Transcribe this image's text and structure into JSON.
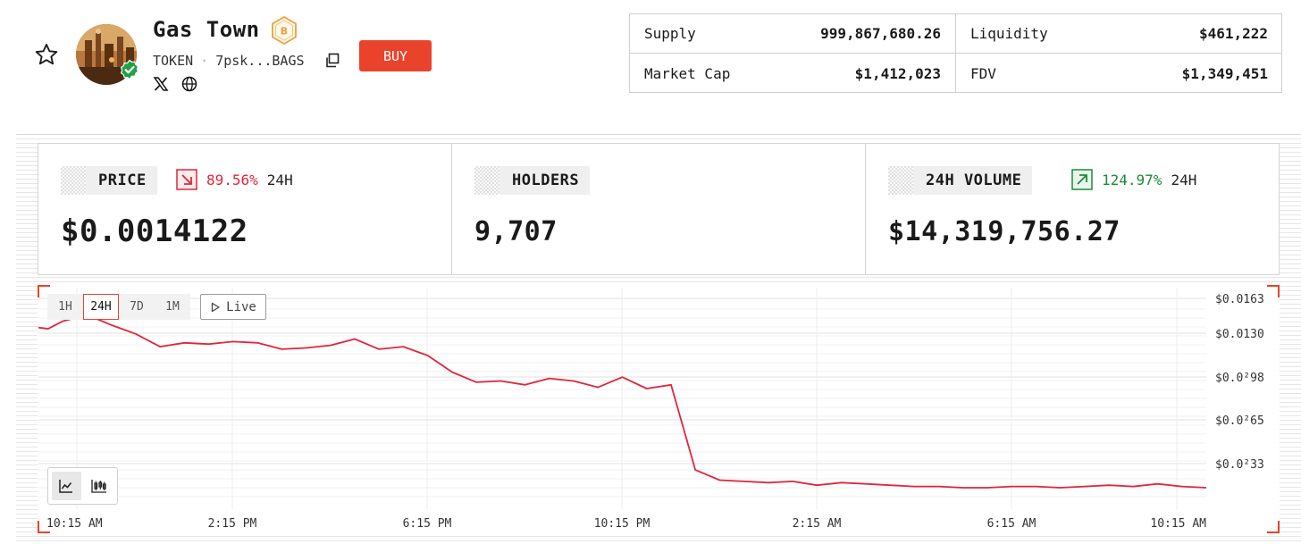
{
  "token": {
    "name": "Gas Town",
    "badge_letter": "B",
    "type": "TOKEN",
    "address": "7psk...BAGS",
    "buy_label": "BUY"
  },
  "stats": [
    {
      "label": "Supply",
      "value": "999,867,680.26"
    },
    {
      "label": "Liquidity",
      "value": "$461,222"
    },
    {
      "label": "Market Cap",
      "value": "$1,412,023"
    },
    {
      "label": "FDV",
      "value": "$1,349,451"
    }
  ],
  "metrics": {
    "price": {
      "label": "PRICE",
      "change": "89.56%",
      "period": "24H",
      "value": "$0.0014122",
      "direction": "down",
      "color": "#e0263c"
    },
    "holders": {
      "label": "HOLDERS",
      "value": "9,707"
    },
    "volume": {
      "label": "24H VOLUME",
      "change": "124.97%",
      "period": "24H",
      "value": "$14,319,756.27",
      "direction": "up",
      "color": "#1f8a3a"
    }
  },
  "timeframes": [
    "1H",
    "24H",
    "7D",
    "1M"
  ],
  "active_timeframe": "24H",
  "live_label": "Live",
  "accent_color": "#e9432b",
  "icons": [
    "star-icon",
    "verified-icon",
    "copy-icon",
    "x-icon",
    "globe-icon",
    "play-icon",
    "line-chart-icon",
    "candlestick-icon",
    "arrow-down-right-icon",
    "arrow-up-right-icon"
  ],
  "chart_data": {
    "type": "line",
    "title": "",
    "xlabel": "",
    "ylabel": "",
    "x_ticks": [
      "10:15 AM",
      "2:15 PM",
      "6:15 PM",
      "10:15 PM",
      "2:15 AM",
      "6:15 AM",
      "10:15 AM"
    ],
    "y_ticks": [
      "$0.0163",
      "$0.0130",
      "$0.0²98",
      "$0.0²65",
      "$0.0²33"
    ],
    "ylim": [
      0.0014,
      0.0163
    ],
    "line_color": "#e0263c",
    "grid": true,
    "series": [
      {
        "x_hours": [
          0,
          0.2,
          0.5,
          1,
          1.5,
          2,
          2.5,
          3,
          3.5,
          4,
          4.5,
          5,
          5.5,
          6,
          6.5,
          7,
          7.5,
          8,
          8.5,
          9,
          9.5,
          10,
          10.5,
          11,
          11.5,
          12,
          12.5,
          13,
          13.5,
          14,
          14.5,
          15,
          15.5,
          16,
          16.5,
          17,
          17.5,
          18,
          18.5,
          19,
          19.5,
          20,
          20.5,
          21,
          21.5,
          22,
          22.5,
          23,
          23.5,
          24
        ],
        "values": [
          0.014,
          0.0139,
          0.0145,
          0.015,
          0.0142,
          0.0135,
          0.0125,
          0.0128,
          0.0127,
          0.0129,
          0.0128,
          0.0123,
          0.0124,
          0.0126,
          0.0131,
          0.0123,
          0.0125,
          0.0118,
          0.0105,
          0.0097,
          0.0098,
          0.0095,
          0.01,
          0.0098,
          0.0093,
          0.0101,
          0.0092,
          0.0095,
          0.0028,
          0.002,
          0.0019,
          0.0018,
          0.0019,
          0.0016,
          0.0018,
          0.0017,
          0.0016,
          0.0015,
          0.0015,
          0.0014,
          0.0014,
          0.0015,
          0.0015,
          0.0014,
          0.0015,
          0.0016,
          0.0015,
          0.0017,
          0.0015,
          0.0014
        ]
      }
    ]
  }
}
